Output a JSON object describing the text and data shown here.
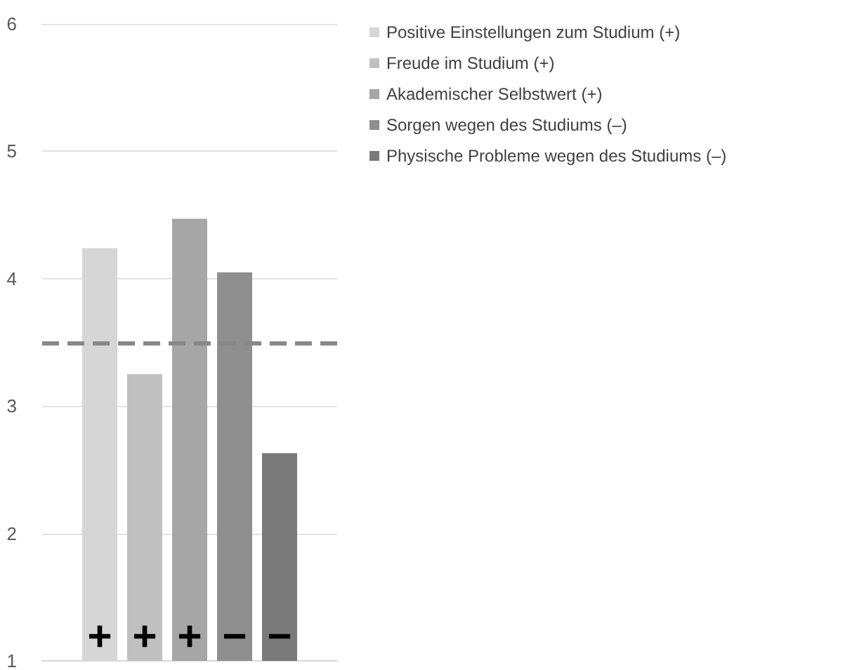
{
  "chart_data": {
    "type": "bar",
    "categories": [
      null
    ],
    "series": [
      {
        "name": "Positive Einstellungen zum Studium (+)",
        "color": "#d6d6d6",
        "values": [
          4.24
        ]
      },
      {
        "name": "Freude im Studium (+)",
        "color": "#c0c0c0",
        "values": [
          3.25
        ]
      },
      {
        "name": "Akademischer Selbstwert (+)",
        "color": "#a6a6a6",
        "values": [
          4.47
        ]
      },
      {
        "name": "Sorgen wegen des Studiums (–)",
        "color": "#8f8f8f",
        "values": [
          4.05
        ]
      },
      {
        "name": "Physische Probleme wegen des Studiums (–)",
        "color": "#7a7a7a",
        "values": [
          2.63
        ]
      }
    ],
    "annotations": [
      "+",
      "+",
      "+",
      "−",
      "−"
    ],
    "ref_lines": [
      {
        "axis": "y",
        "value": 3.5,
        "color": "#888888",
        "line_style": "dashed"
      }
    ],
    "ylim": [
      1,
      6
    ],
    "yticks": [
      1,
      2,
      3,
      4,
      5,
      6
    ],
    "grid": "y",
    "legend": "top right"
  }
}
